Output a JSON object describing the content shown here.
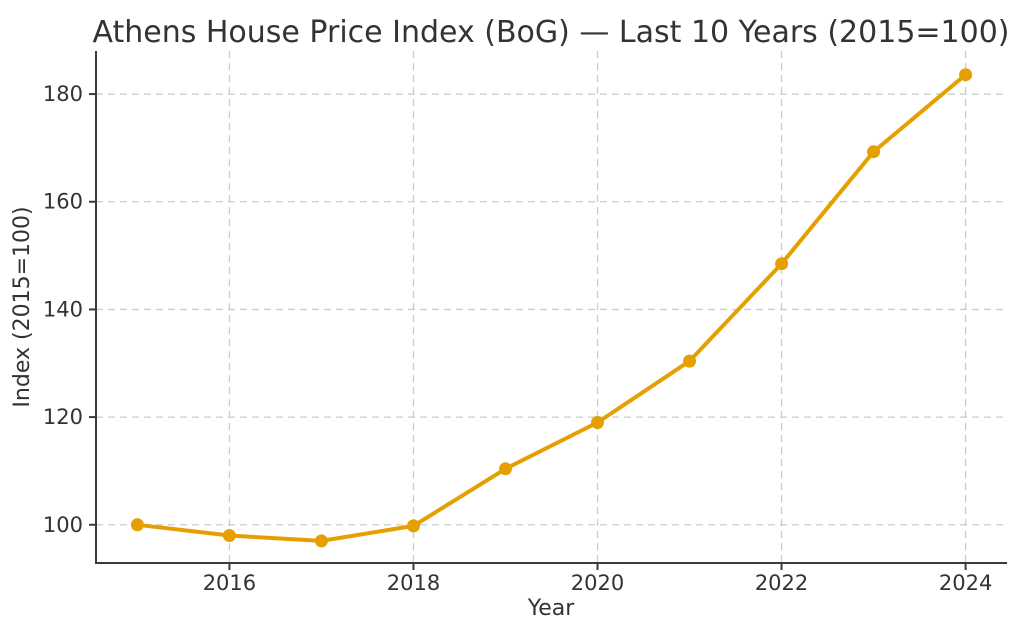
{
  "chart_data": {
    "type": "line",
    "title": "Athens House Price Index (BoG) — Last 10 Years (2015=100)",
    "xlabel": "Year",
    "ylabel": "Index (2015=100)",
    "x": [
      2015,
      2016,
      2017,
      2018,
      2019,
      2020,
      2021,
      2022,
      2023,
      2024
    ],
    "values": [
      100.0,
      98.0,
      97.0,
      99.8,
      110.4,
      119.0,
      130.4,
      148.5,
      169.3,
      183.6
    ],
    "xticks": [
      2016,
      2018,
      2020,
      2022,
      2024
    ],
    "yticks": [
      100,
      120,
      140,
      160,
      180
    ],
    "xlim": [
      2014.55,
      2024.45
    ],
    "ylim": [
      92.9,
      188.0
    ],
    "grid": true,
    "grid_style": "dashed",
    "legend": "none",
    "line_color": "#E69F00",
    "marker": "circle",
    "grid_color": "#cccccc",
    "spine_color": "#3b3b3b",
    "text_color": "#333333"
  }
}
